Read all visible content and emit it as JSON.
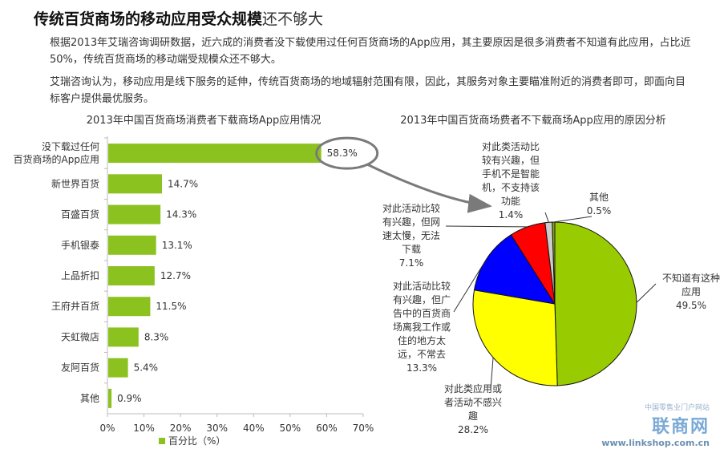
{
  "header": {
    "title_main": "传统百货商场的移动应用受众规模",
    "title_tail": "还不够大",
    "para1": "根据2013年艾瑞咨询调研数据，近六成的消费者没下载使用过任何百货商场的App应用，其主要原因是很多消费者不知道有此应用，占比近50%，传统百货商场的移动端受规模众还不够大。",
    "para2": "艾瑞咨询认为，移动应用是线下服务的延伸，传统百货商场的地域辐射范围有限，因此，其服务对象主要瞄准附近的消费者即可，即面向目标客户提供最优服务。"
  },
  "chart_data": [
    {
      "type": "bar",
      "orientation": "horizontal",
      "title": "2013年中国百货商场消费者下载商场App应用情况",
      "categories": [
        [
          "没下载过任何",
          "百货商场的App应用"
        ],
        [
          "新世界百货"
        ],
        [
          "百盛百货"
        ],
        [
          "手机银泰"
        ],
        [
          "上品折扣"
        ],
        [
          "王府井百货"
        ],
        [
          "天虹微店"
        ],
        [
          "友阿百货"
        ],
        [
          "其他"
        ]
      ],
      "values": [
        58.3,
        14.7,
        14.3,
        13.1,
        12.7,
        11.5,
        8.3,
        5.4,
        0.9
      ],
      "value_labels": [
        "58.3%",
        "14.7%",
        "14.3%",
        "13.1%",
        "12.7%",
        "11.5%",
        "8.3%",
        "5.4%",
        "0.9%"
      ],
      "xlim": [
        0,
        70
      ],
      "xticks": [
        "0%",
        "10%",
        "20%",
        "30%",
        "40%",
        "50%",
        "60%",
        "70%"
      ],
      "legend": "百分比（%）",
      "legend_position": "bottom",
      "color": "#8cc21f",
      "annotation": "58.3% highlighted with circle and arrow to pie chart"
    },
    {
      "type": "pie",
      "title": "2013年中国百货商场费者不下载商场App应用的原因分析",
      "slices": [
        {
          "label": [
            "不知道有这种",
            "应用"
          ],
          "value": 49.5,
          "value_label": "49.5%",
          "color": "#99cc00"
        },
        {
          "label": [
            "对此类应用或",
            "者活动不感兴",
            "趣"
          ],
          "value": 28.2,
          "value_label": "28.2%",
          "color": "#ffff00"
        },
        {
          "label": [
            "对此活动比较",
            "有兴趣，但广",
            "告中的百货商",
            "场离我工作或",
            "住的地方太",
            "远，不常去"
          ],
          "value": 13.3,
          "value_label": "13.3%",
          "color": "#0000ff"
        },
        {
          "label": [
            "对此活动比较",
            "有兴趣，但网",
            "速太慢，无法",
            "下载"
          ],
          "value": 7.1,
          "value_label": "7.1%",
          "color": "#ff0000"
        },
        {
          "label": [
            "对此类活动比",
            "较有兴趣，但",
            "手机不是智能",
            "机，不支持该",
            "功能"
          ],
          "value": 1.4,
          "value_label": "1.4%",
          "color": "#cccccc"
        },
        {
          "label": [
            "其他"
          ],
          "value": 0.5,
          "value_label": "0.5%",
          "color": "#88aa22"
        }
      ]
    }
  ],
  "watermark": {
    "line1": "中国零售业门户网站",
    "line2": "联商网",
    "line3": "www.linkshop.com.cn"
  }
}
